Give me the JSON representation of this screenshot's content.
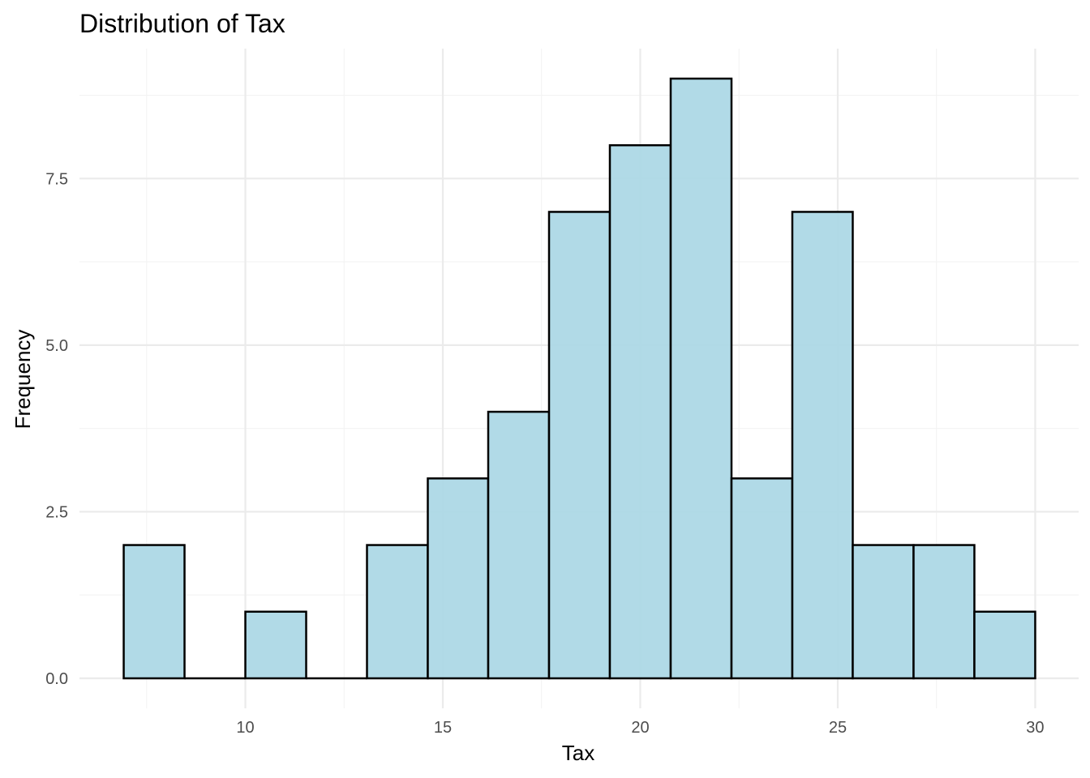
{
  "chart_data": {
    "type": "bar",
    "subtype": "histogram",
    "title": "Distribution of Tax",
    "xlabel": "Tax",
    "ylabel": "Frequency",
    "bins": [
      {
        "x0": 6.92,
        "x1": 8.46,
        "count": 2
      },
      {
        "x0": 8.46,
        "x1": 10.0,
        "count": 0
      },
      {
        "x0": 10.0,
        "x1": 11.54,
        "count": 1
      },
      {
        "x0": 11.54,
        "x1": 13.08,
        "count": 0
      },
      {
        "x0": 13.08,
        "x1": 14.62,
        "count": 2
      },
      {
        "x0": 14.62,
        "x1": 16.15,
        "count": 3
      },
      {
        "x0": 16.15,
        "x1": 17.69,
        "count": 4
      },
      {
        "x0": 17.69,
        "x1": 19.23,
        "count": 7
      },
      {
        "x0": 19.23,
        "x1": 20.77,
        "count": 8
      },
      {
        "x0": 20.77,
        "x1": 22.31,
        "count": 9
      },
      {
        "x0": 22.31,
        "x1": 23.85,
        "count": 3
      },
      {
        "x0": 23.85,
        "x1": 25.38,
        "count": 7
      },
      {
        "x0": 25.38,
        "x1": 26.92,
        "count": 2
      },
      {
        "x0": 26.92,
        "x1": 28.46,
        "count": 2
      },
      {
        "x0": 28.46,
        "x1": 30.0,
        "count": 1
      }
    ],
    "xlim": [
      5.8,
      31.1
    ],
    "ylim": [
      -0.45,
      9.45
    ],
    "x_ticks": [
      10,
      15,
      20,
      25,
      30
    ],
    "x_tick_labels": [
      "10",
      "15",
      "20",
      "25",
      "30"
    ],
    "y_ticks": [
      0,
      2.5,
      5,
      7.5
    ],
    "y_tick_labels": [
      "0.0",
      "2.5",
      "5.0",
      "7.5"
    ],
    "x_minor_ticks": [
      7.5,
      12.5,
      17.5,
      22.5,
      27.5
    ],
    "y_minor_ticks": [
      1.25,
      3.75,
      6.25,
      8.75
    ],
    "grid": true,
    "bar_fill": "#add8e6",
    "bar_fill_opacity": 0.95,
    "bar_edge": "#000000"
  }
}
